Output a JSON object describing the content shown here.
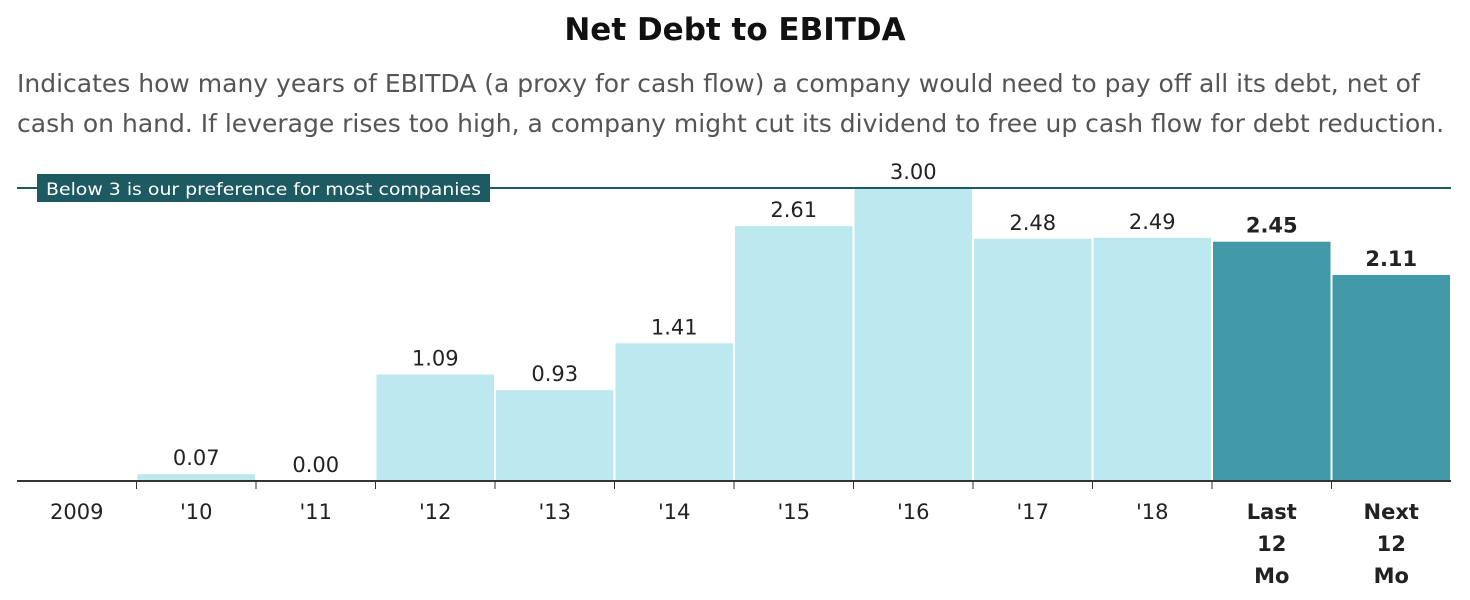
{
  "title": "Net Debt to EBITDA",
  "subtitle": "Indicates how many years of EBITDA (a proxy for cash flow) a company would need to pay off all its debt, net of cash on hand. If leverage rises too high, a company might cut its dividend to free up cash flow for debt reduction.",
  "colors": {
    "historical_bar": "#bce9ef",
    "projection_bar": "#429aa9",
    "reference_line": "#1d5a61",
    "axis": "#333333"
  },
  "chart_data": {
    "type": "bar",
    "title": "Net Debt to EBITDA",
    "xlabel": "",
    "ylabel": "",
    "ylim": [
      0,
      3
    ],
    "grid": false,
    "categories": [
      "2009",
      "'10",
      "'11",
      "'12",
      "'13",
      "'14",
      "'15",
      "'16",
      "'17",
      "'18",
      "Last 12 Mo",
      "Next 12 Mo"
    ],
    "category_lines": [
      [
        "2009"
      ],
      [
        "'10"
      ],
      [
        "'11"
      ],
      [
        "'12"
      ],
      [
        "'13"
      ],
      [
        "'14"
      ],
      [
        "'15"
      ],
      [
        "'16"
      ],
      [
        "'17"
      ],
      [
        "'18"
      ],
      [
        "Last",
        "12",
        "Mo"
      ],
      [
        "Next",
        "12",
        "Mo"
      ]
    ],
    "values": [
      null,
      0.07,
      0.0,
      1.09,
      0.93,
      1.41,
      2.61,
      3.0,
      2.48,
      2.49,
      2.45,
      2.11
    ],
    "value_labels": [
      "",
      "0.07",
      "0.00",
      "1.09",
      "0.93",
      "1.41",
      "2.61",
      "3.00",
      "2.48",
      "2.49",
      "2.45",
      "2.11"
    ],
    "highlighted": [
      false,
      false,
      false,
      false,
      false,
      false,
      false,
      false,
      false,
      false,
      true,
      true
    ],
    "reference_line": {
      "value": 3,
      "label": "Below 3 is our preference for most companies"
    }
  }
}
